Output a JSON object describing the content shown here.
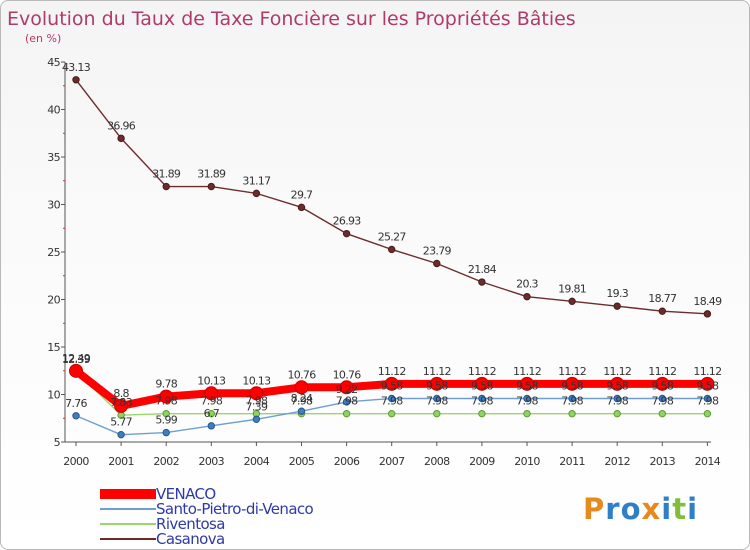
{
  "header": {
    "title": "Evolution du Taux de Taxe Foncière sur les Propriétés Bâties",
    "subtitle": "(en %)"
  },
  "logo": {
    "text": "Proxiti"
  },
  "chart_data": {
    "type": "line",
    "x": [
      2000,
      2001,
      2002,
      2003,
      2004,
      2005,
      2006,
      2007,
      2008,
      2009,
      2010,
      2011,
      2012,
      2013,
      2014
    ],
    "ylim": [
      5,
      45
    ],
    "yticks": [
      5,
      10,
      15,
      20,
      25,
      30,
      35,
      40,
      45
    ],
    "grid": false,
    "legend_position": "bottom-left",
    "series": [
      {
        "name": "VENACO",
        "color": "#ff0000",
        "values": [
          12.49,
          8.8,
          9.78,
          10.13,
          10.13,
          10.76,
          10.76,
          11.12,
          11.12,
          11.12,
          11.12,
          11.12,
          11.12,
          11.12,
          11.12
        ]
      },
      {
        "name": "Santo-Pietro-di-Venaco",
        "color": "#6f9fd0",
        "values": [
          7.76,
          5.77,
          5.99,
          6.7,
          7.39,
          8.24,
          9.22,
          9.58,
          9.58,
          9.58,
          9.58,
          9.58,
          9.58,
          9.58,
          9.58
        ]
      },
      {
        "name": "Riventosa",
        "color": "#99d66b",
        "values": [
          12.39,
          7.83,
          7.98,
          7.98,
          7.98,
          7.98,
          7.98,
          7.98,
          7.98,
          7.98,
          7.98,
          7.98,
          7.98,
          7.98,
          7.98
        ]
      },
      {
        "name": "Casanova",
        "color": "#6d2c2c",
        "values": [
          43.13,
          36.96,
          31.89,
          31.89,
          31.17,
          29.7,
          26.93,
          25.27,
          23.79,
          21.84,
          20.3,
          19.81,
          19.3,
          18.77,
          18.49
        ]
      }
    ],
    "data_labels": {
      "VENACO": [
        "12.49",
        "8.8",
        "9.78",
        "10.13",
        "10.13",
        "10.76",
        "10.76",
        "11.12",
        "11.12",
        "11.12",
        "11.12",
        "11.12",
        "11.12",
        "11.12",
        "11.12"
      ],
      "Santo-Pietro-di-Venaco": [
        "7.76",
        "5.77",
        "5.99",
        "6.7",
        "7.39",
        "8.24",
        "9.22",
        "9.58",
        "9.58",
        "9.58",
        "9.58",
        "9.58",
        "9.58",
        "9.58",
        "9.58"
      ],
      "Riventosa": [
        "12.39",
        "7.83",
        "7.98",
        "7.98",
        "7.98",
        "7.98",
        "7.98",
        "7.98",
        "7.98",
        "7.98",
        "7.98",
        "7.98",
        "7.98",
        "7.98",
        "7.98"
      ],
      "Casanova": [
        "43.13",
        "36.96",
        "31.89",
        "31.89",
        "31.17",
        "29.7",
        "26.93",
        "25.27",
        "23.79",
        "21.84",
        "20.3",
        "19.81",
        "19.3",
        "18.77",
        "18.49"
      ]
    }
  }
}
